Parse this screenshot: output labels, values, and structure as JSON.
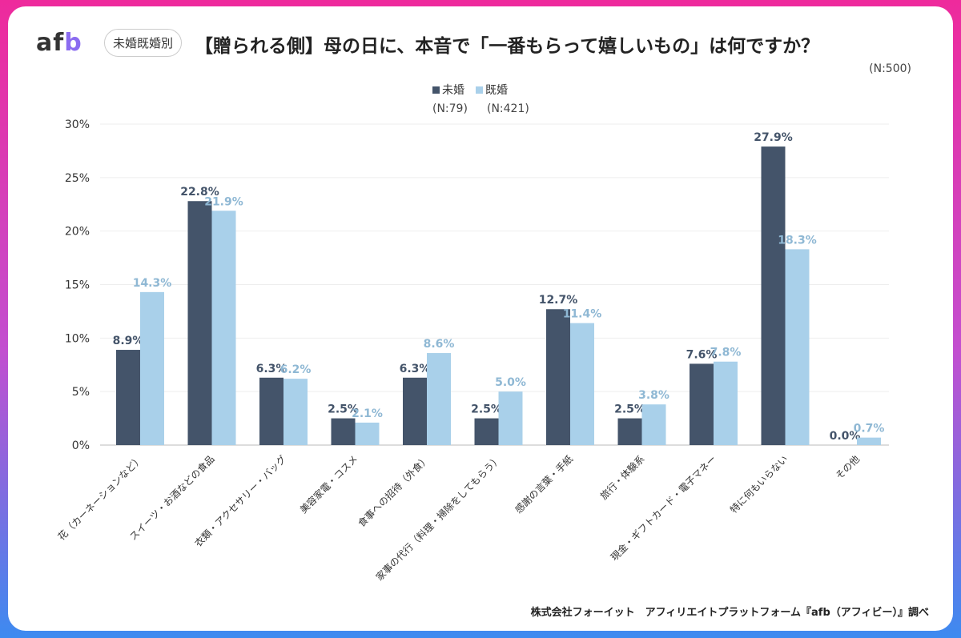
{
  "header": {
    "logo": "afb",
    "tag": "未婚既婚別",
    "title": "【贈られる側】母の日に、本音で「一番もらって嬉しいもの」は何ですか？",
    "n_total": "(N:500)"
  },
  "footer": "株式会社フォーイット　アフィリエイトプラットフォーム『afb（アフィビー）』調べ",
  "colors": {
    "unmarried": "#44546a",
    "married": "#a9d0ea"
  },
  "chart_data": {
    "type": "bar",
    "title": "【贈られる側】母の日に、本音で「一番もらって嬉しいもの」は何ですか？",
    "categories": [
      "花（カーネーションなど）",
      "スイーツ・お酒などの食品",
      "衣類・アクセサリー・バッグ",
      "美容家電・コスメ",
      "食事への招待（外食）",
      "家事の代行（料理・掃除をしてもらう）",
      "感謝の言葉・手紙",
      "旅行・体験系",
      "現金・ギフトカード・電子マネー",
      "特に何もいらない",
      "その他"
    ],
    "series": [
      {
        "name": "未婚",
        "n": "(N:79)",
        "values": [
          8.9,
          22.8,
          6.3,
          2.5,
          6.3,
          2.5,
          12.7,
          2.5,
          7.6,
          27.9,
          0.0
        ]
      },
      {
        "name": "既婚",
        "n": "(N:421)",
        "values": [
          14.3,
          21.9,
          6.2,
          2.1,
          8.6,
          5.0,
          11.4,
          3.8,
          7.8,
          18.3,
          0.7
        ]
      }
    ],
    "yticks": [
      "0%",
      "5%",
      "10%",
      "15%",
      "20%",
      "25%",
      "30%"
    ],
    "ylim": [
      0,
      30
    ],
    "grid": true,
    "legend": "top-center"
  }
}
